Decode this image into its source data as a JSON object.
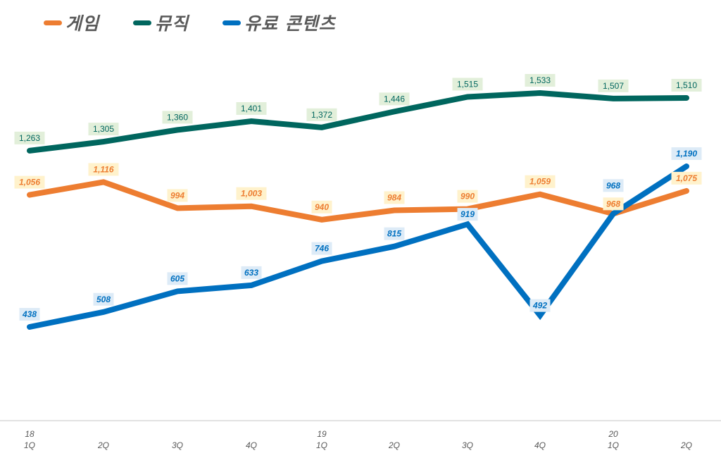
{
  "chart_data": {
    "type": "line",
    "title": "",
    "xlabel": "",
    "ylabel": "",
    "ylim": [
      0,
      2000
    ],
    "grid": false,
    "legend_position": "top-left",
    "categories": [
      {
        "year": "18",
        "quarter": "1Q"
      },
      {
        "year": "",
        "quarter": "2Q"
      },
      {
        "year": "",
        "quarter": "3Q"
      },
      {
        "year": "",
        "quarter": "4Q"
      },
      {
        "year": "19",
        "quarter": "1Q"
      },
      {
        "year": "",
        "quarter": "2Q"
      },
      {
        "year": "",
        "quarter": "3Q"
      },
      {
        "year": "",
        "quarter": "4Q"
      },
      {
        "year": "20",
        "quarter": "1Q"
      },
      {
        "year": "",
        "quarter": "2Q"
      }
    ],
    "series": [
      {
        "name": "게임",
        "color": "#ED7D31",
        "label_bg": "#FFF2CC",
        "label_italic": true,
        "values": [
          1056,
          1116,
          994,
          1003,
          940,
          984,
          990,
          1059,
          968,
          1075
        ],
        "labels": [
          "1,056",
          "1,116",
          "994",
          "1,003",
          "940",
          "984",
          "990",
          "1,059",
          "968",
          "1,075"
        ]
      },
      {
        "name": "뮤직",
        "color": "#00665E",
        "label_bg": "#E2EFDA",
        "label_italic": false,
        "values": [
          1263,
          1305,
          1360,
          1401,
          1372,
          1446,
          1515,
          1533,
          1507,
          1510
        ],
        "labels": [
          "1,263",
          "1,305",
          "1,360",
          "1,401",
          "1,372",
          "1,446",
          "1,515",
          "1,533",
          "1,507",
          "1,510"
        ]
      },
      {
        "name": "유료 콘텐츠",
        "color": "#0070C0",
        "label_bg": "#DDEBF7",
        "label_italic": true,
        "values": [
          438,
          508,
          605,
          633,
          746,
          815,
          919,
          492,
          968,
          1190
        ],
        "labels": [
          "438",
          "508",
          "605",
          "633",
          "746",
          "815",
          "919",
          "492",
          "968",
          "1,190"
        ]
      }
    ]
  }
}
